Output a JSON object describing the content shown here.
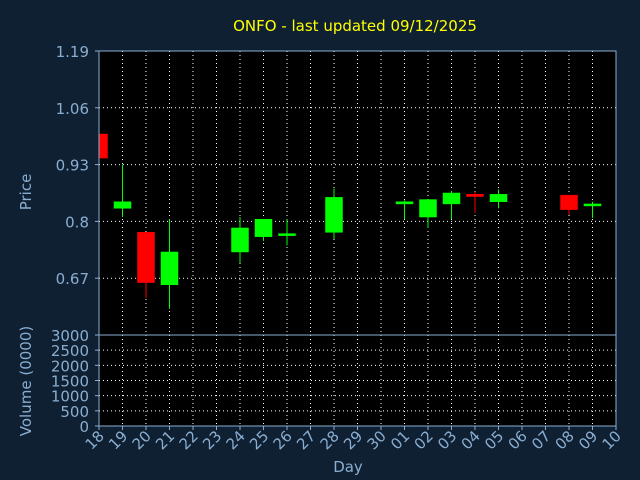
{
  "chart_data": {
    "type": "candlestick",
    "title": "ONFO - last updated 09/12/2025",
    "xlabel": "Day",
    "x_ticks": [
      "18",
      "19",
      "20",
      "21",
      "22",
      "23",
      "24",
      "25",
      "26",
      "27",
      "28",
      "29",
      "30",
      "01",
      "02",
      "03",
      "04",
      "05",
      "06",
      "07",
      "08",
      "09",
      "10"
    ],
    "price_panel": {
      "ylabel": "Price",
      "ylim": [
        0.54,
        1.19
      ],
      "y_ticks": [
        "1.19",
        "1.06",
        "0.93",
        "0.8",
        "0.67"
      ],
      "y_tick_values": [
        1.19,
        1.06,
        0.93,
        0.8,
        0.67
      ],
      "grid": true
    },
    "volume_panel": {
      "ylabel": "Volume (0000)",
      "ylim": [
        0,
        3000
      ],
      "y_ticks": [
        "3000",
        "2500",
        "2000",
        "1500",
        "1000",
        "500",
        "0"
      ],
      "y_tick_values": [
        3000,
        2500,
        2000,
        1500,
        1000,
        500,
        0
      ],
      "grid": true
    },
    "candles": [
      {
        "day": "18",
        "open": 1.0,
        "high": 1.0,
        "low": 0.945,
        "close": 0.945
      },
      {
        "day": "19",
        "open": 0.83,
        "high": 0.93,
        "low": 0.81,
        "close": 0.845
      },
      {
        "day": "20",
        "open": 0.775,
        "high": 0.775,
        "low": 0.625,
        "close": 0.66
      },
      {
        "day": "21",
        "open": 0.655,
        "high": 0.805,
        "low": 0.6,
        "close": 0.73
      },
      {
        "day": "24",
        "open": 0.73,
        "high": 0.81,
        "low": 0.705,
        "close": 0.785
      },
      {
        "day": "25",
        "open": 0.765,
        "high": 0.805,
        "low": 0.755,
        "close": 0.805
      },
      {
        "day": "26",
        "open": 0.77,
        "high": 0.805,
        "low": 0.745,
        "close": 0.772
      },
      {
        "day": "28",
        "open": 0.775,
        "high": 0.875,
        "low": 0.76,
        "close": 0.855
      },
      {
        "day": "01",
        "open": 0.84,
        "high": 0.848,
        "low": 0.805,
        "close": 0.845
      },
      {
        "day": "02",
        "open": 0.81,
        "high": 0.85,
        "low": 0.785,
        "close": 0.85
      },
      {
        "day": "03",
        "open": 0.84,
        "high": 0.87,
        "low": 0.805,
        "close": 0.865
      },
      {
        "day": "04",
        "open": 0.862,
        "high": 0.868,
        "low": 0.82,
        "close": 0.857
      },
      {
        "day": "05",
        "open": 0.845,
        "high": 0.873,
        "low": 0.83,
        "close": 0.862
      },
      {
        "day": "08",
        "open": 0.86,
        "high": 0.86,
        "low": 0.815,
        "close": 0.827
      },
      {
        "day": "09",
        "open": 0.838,
        "high": 0.845,
        "low": 0.808,
        "close": 0.84
      }
    ],
    "colors": {
      "up": "#00ff00",
      "down": "#ff0000",
      "grid": "#ffffff",
      "axis": "#8aaed0",
      "title": "#ffff00",
      "background": "#0f2033",
      "plot": "#000000"
    }
  }
}
